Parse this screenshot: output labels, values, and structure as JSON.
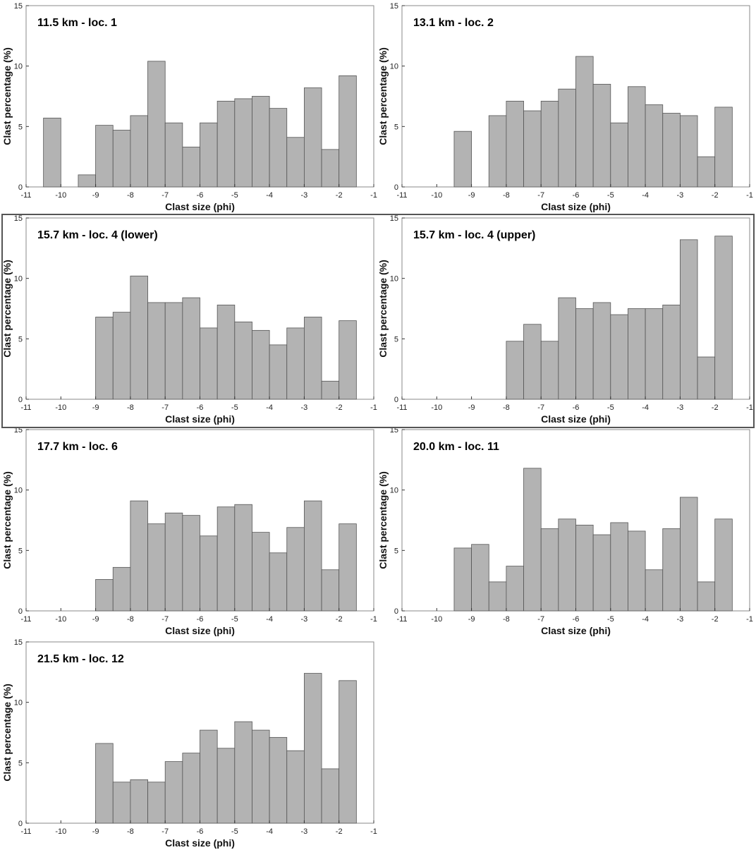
{
  "chart_data": [
    {
      "type": "bar",
      "title": "11.5 km - loc. 1",
      "xlabel": "Clast size (phi)",
      "ylabel": "Clast percentage (%)",
      "xlim": [
        -11,
        -1
      ],
      "ylim": [
        0,
        15
      ],
      "xticks": [
        -11,
        -10,
        -9,
        -8,
        -7,
        -6,
        -5,
        -4,
        -3,
        -2,
        -1
      ],
      "yticks": [
        0,
        5,
        10,
        15
      ],
      "bin_width": 0.5,
      "bin_starts": [
        -10.5,
        -10,
        -9.5,
        -9,
        -8.5,
        -8,
        -7.5,
        -7,
        -6.5,
        -6,
        -5.5,
        -5,
        -4.5,
        -4,
        -3.5,
        -3,
        -2.5,
        -2
      ],
      "values": [
        5.7,
        0,
        1.0,
        5.1,
        4.7,
        5.9,
        10.4,
        5.3,
        3.3,
        5.3,
        7.1,
        7.3,
        7.5,
        6.5,
        4.1,
        8.2,
        3.1,
        9.2
      ]
    },
    {
      "type": "bar",
      "title": "13.1 km - loc. 2",
      "xlabel": "Clast size (phi)",
      "ylabel": "Clast percentage (%)",
      "xlim": [
        -11,
        -1
      ],
      "ylim": [
        0,
        15
      ],
      "xticks": [
        -11,
        -10,
        -9,
        -8,
        -7,
        -6,
        -5,
        -4,
        -3,
        -2,
        -1
      ],
      "yticks": [
        0,
        5,
        10,
        15
      ],
      "bin_width": 0.5,
      "bin_starts": [
        -9.5,
        -9,
        -8.5,
        -8,
        -7.5,
        -7,
        -6.5,
        -6,
        -5.5,
        -5,
        -4.5,
        -4,
        -3.5,
        -3,
        -2.5,
        -2
      ],
      "values": [
        4.6,
        0,
        5.9,
        7.1,
        6.3,
        7.1,
        8.1,
        10.8,
        8.5,
        5.3,
        8.3,
        6.8,
        6.1,
        5.9,
        2.5,
        6.6
      ]
    },
    {
      "type": "bar",
      "title": "15.7 km - loc. 4 (lower)",
      "xlabel": "Clast size (phi)",
      "ylabel": "Clast percentage (%)",
      "xlim": [
        -11,
        -1
      ],
      "ylim": [
        0,
        15
      ],
      "xticks": [
        -11,
        -10,
        -9,
        -8,
        -7,
        -6,
        -5,
        -4,
        -3,
        -2,
        -1
      ],
      "yticks": [
        0,
        5,
        10,
        15
      ],
      "bin_width": 0.5,
      "bin_starts": [
        -9,
        -8.5,
        -8,
        -7.5,
        -7,
        -6.5,
        -6,
        -5.5,
        -5,
        -4.5,
        -4,
        -3.5,
        -3,
        -2.5,
        -2
      ],
      "values": [
        6.8,
        7.2,
        10.2,
        8.0,
        8.0,
        8.4,
        5.9,
        7.8,
        6.4,
        5.7,
        4.5,
        5.9,
        6.8,
        1.5,
        6.5
      ]
    },
    {
      "type": "bar",
      "title": "15.7 km - loc. 4 (upper)",
      "xlabel": "Clast size (phi)",
      "ylabel": "Clast percentage (%)",
      "xlim": [
        -11,
        -1
      ],
      "ylim": [
        0,
        15
      ],
      "xticks": [
        -11,
        -10,
        -9,
        -8,
        -7,
        -6,
        -5,
        -4,
        -3,
        -2,
        -1
      ],
      "yticks": [
        0,
        5,
        10,
        15
      ],
      "bin_width": 0.5,
      "bin_starts": [
        -8,
        -7.5,
        -7,
        -6.5,
        -6,
        -5.5,
        -5,
        -4.5,
        -4,
        -3.5,
        -3,
        -2.5,
        -2
      ],
      "values": [
        4.8,
        6.2,
        4.8,
        8.4,
        7.5,
        8.0,
        7.0,
        7.5,
        7.5,
        7.8,
        13.2,
        3.5,
        13.5
      ]
    },
    {
      "type": "bar",
      "title": "17.7 km - loc. 6",
      "xlabel": "Clast size (phi)",
      "ylabel": "Clast percentage (%)",
      "xlim": [
        -11,
        -1
      ],
      "ylim": [
        0,
        15
      ],
      "xticks": [
        -11,
        -10,
        -9,
        -8,
        -7,
        -6,
        -5,
        -4,
        -3,
        -2,
        -1
      ],
      "yticks": [
        0,
        5,
        10,
        15
      ],
      "bin_width": 0.5,
      "bin_starts": [
        -9,
        -8.5,
        -8,
        -7.5,
        -7,
        -6.5,
        -6,
        -5.5,
        -5,
        -4.5,
        -4,
        -3.5,
        -3,
        -2.5,
        -2
      ],
      "values": [
        2.6,
        3.6,
        9.1,
        7.2,
        8.1,
        7.9,
        6.2,
        8.6,
        8.8,
        6.5,
        4.8,
        6.9,
        9.1,
        3.4,
        7.2
      ]
    },
    {
      "type": "bar",
      "title": "20.0 km - loc. 11",
      "xlabel": "Clast size (phi)",
      "ylabel": "Clast percentage (%)",
      "xlim": [
        -11,
        -1
      ],
      "ylim": [
        0,
        15
      ],
      "xticks": [
        -11,
        -10,
        -9,
        -8,
        -7,
        -6,
        -5,
        -4,
        -3,
        -2,
        -1
      ],
      "yticks": [
        0,
        5,
        10,
        15
      ],
      "bin_width": 0.5,
      "bin_starts": [
        -9.5,
        -9,
        -8.5,
        -8,
        -7.5,
        -7,
        -6.5,
        -6,
        -5.5,
        -5,
        -4.5,
        -4,
        -3.5,
        -3,
        -2.5,
        -2
      ],
      "values": [
        5.2,
        5.5,
        2.4,
        3.7,
        11.8,
        6.8,
        7.6,
        7.1,
        6.3,
        7.3,
        6.6,
        3.4,
        6.8,
        9.4,
        2.4,
        7.6
      ]
    },
    {
      "type": "bar",
      "title": "21.5 km - loc. 12",
      "xlabel": "Clast size (phi)",
      "ylabel": "Clast percentage (%)",
      "xlim": [
        -11,
        -1
      ],
      "ylim": [
        0,
        15
      ],
      "xticks": [
        -11,
        -10,
        -9,
        -8,
        -7,
        -6,
        -5,
        -4,
        -3,
        -2,
        -1
      ],
      "yticks": [
        0,
        5,
        10,
        15
      ],
      "bin_width": 0.5,
      "bin_starts": [
        -9,
        -8.5,
        -8,
        -7.5,
        -7,
        -6.5,
        -6,
        -5.5,
        -5,
        -4.5,
        -4,
        -3.5,
        -3,
        -2.5,
        -2
      ],
      "values": [
        6.6,
        3.4,
        3.6,
        3.4,
        5.1,
        5.8,
        7.7,
        6.2,
        8.4,
        7.7,
        7.1,
        6.0,
        12.4,
        4.5,
        11.8
      ]
    }
  ]
}
